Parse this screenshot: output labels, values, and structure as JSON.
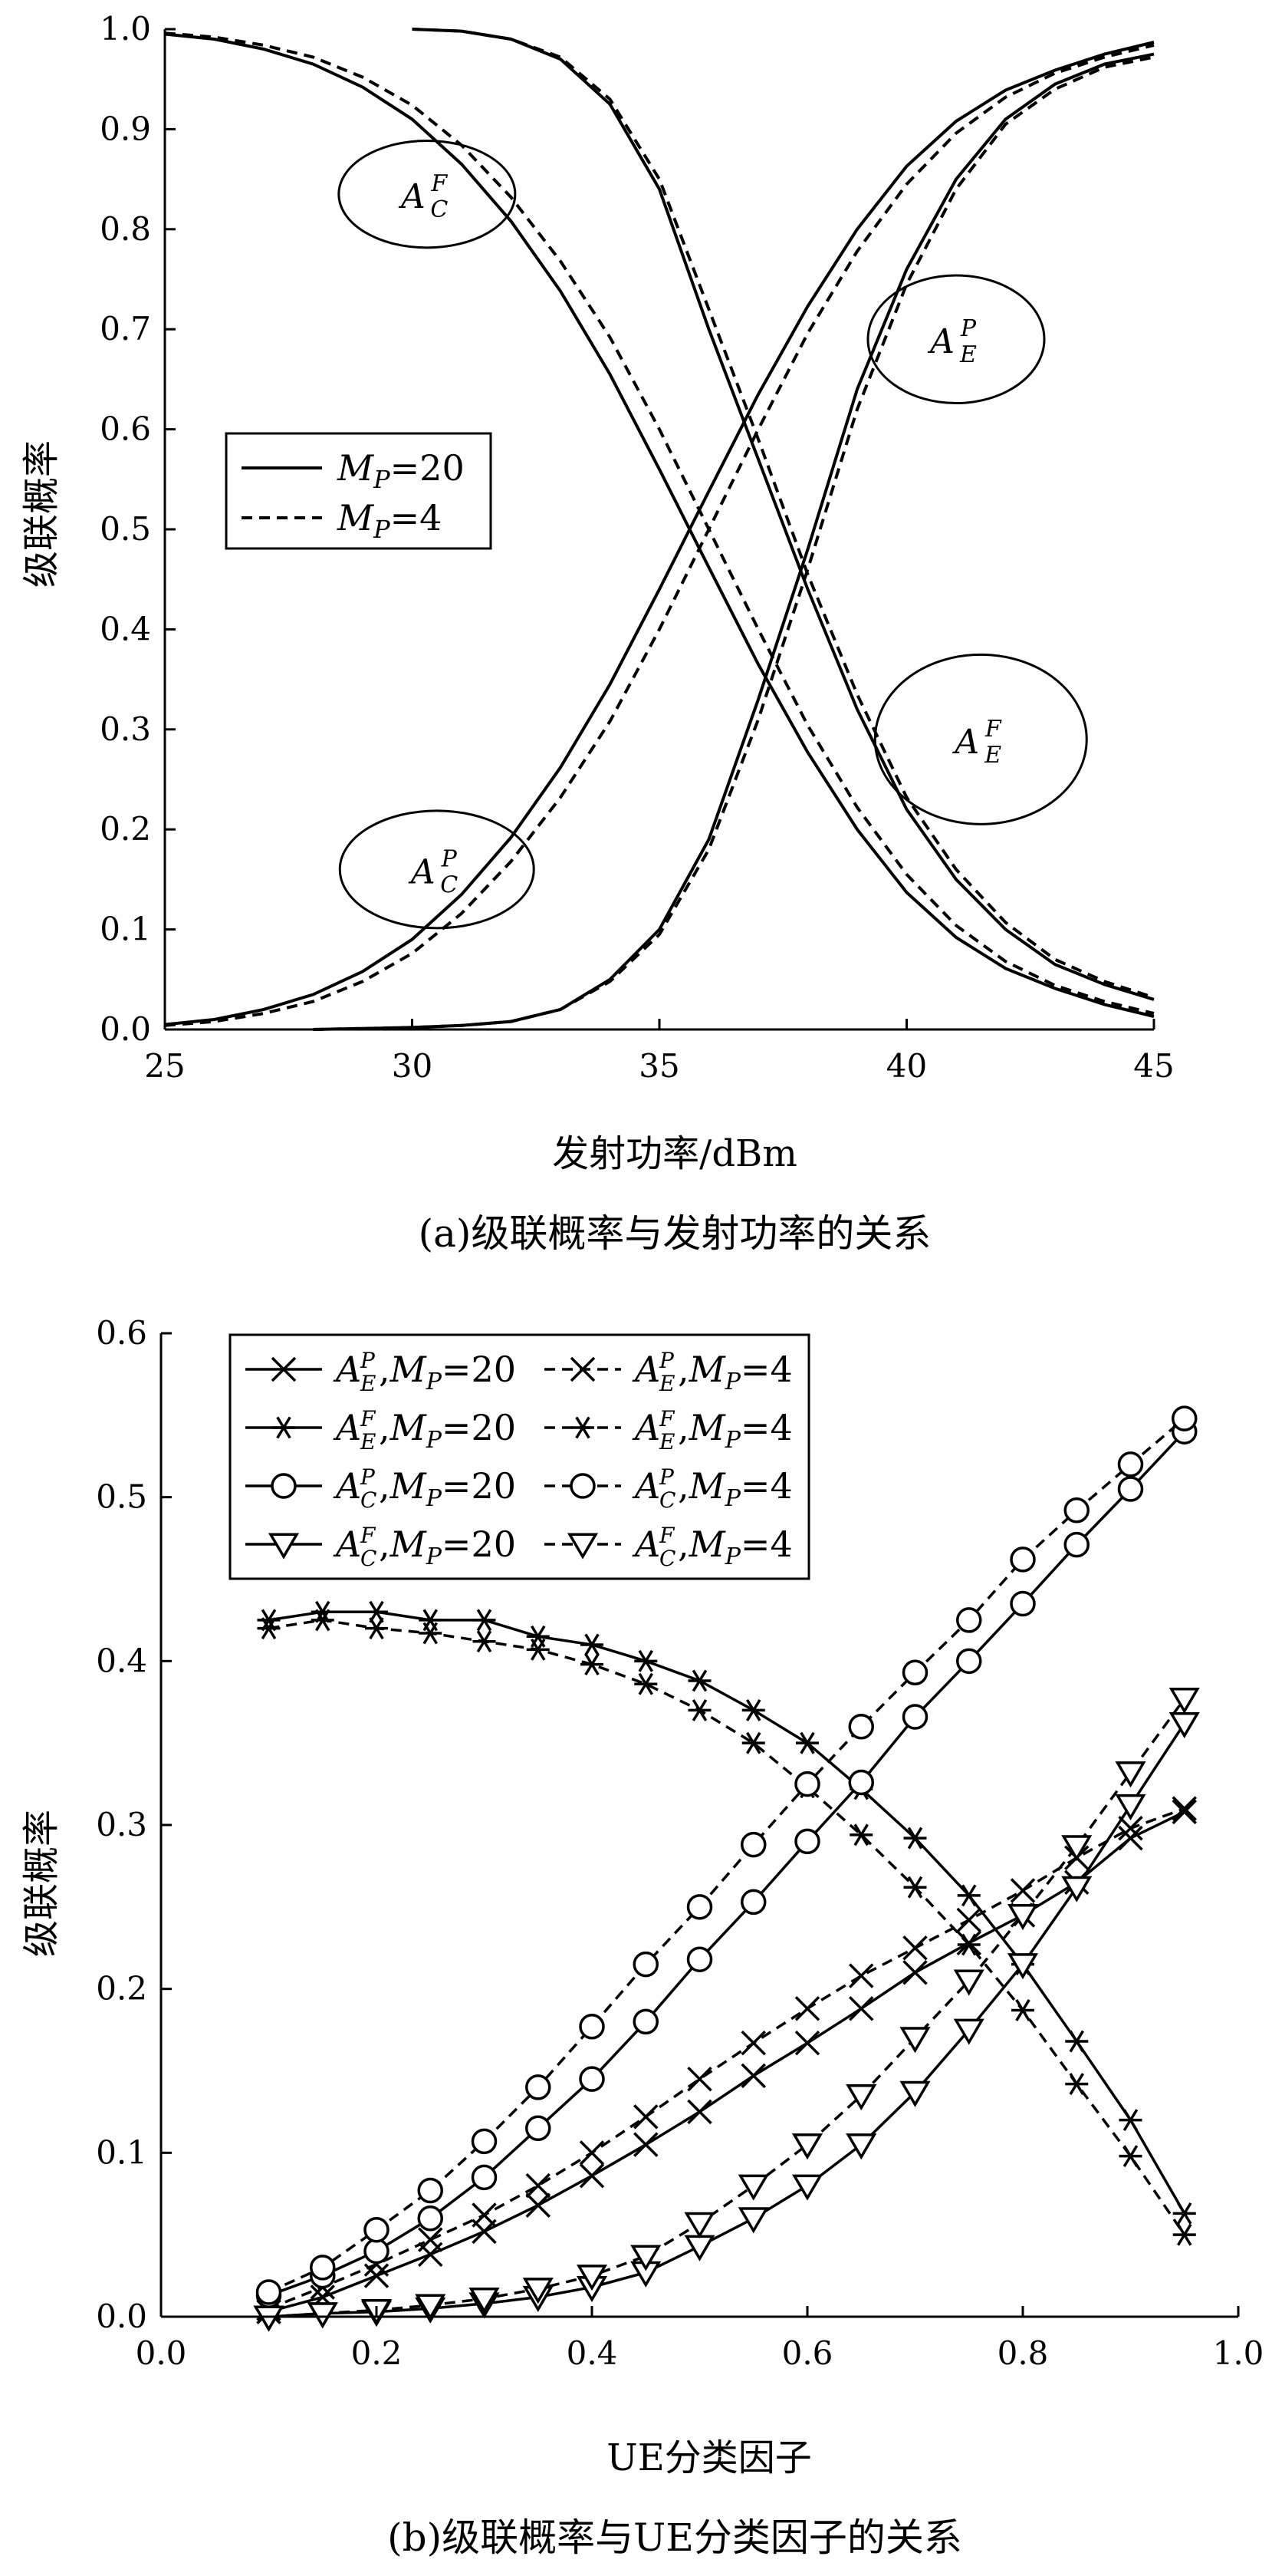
{
  "chart_data": [
    {
      "type": "line",
      "caption": "(a)级联概率与发射功率的关系",
      "xlabel": "发射功率/dBm",
      "ylabel": "级联概率",
      "xlim": [
        25,
        45
      ],
      "ylim": [
        0,
        1.0
      ],
      "xticks": [
        "25",
        "30",
        "35",
        "40",
        "45"
      ],
      "yticks": [
        "0.0",
        "0.1",
        "0.2",
        "0.3",
        "0.4",
        "0.5",
        "0.6",
        "0.7",
        "0.8",
        "0.9",
        "1.0"
      ],
      "grid": false,
      "legend": {
        "position": "middle-left",
        "entries": [
          {
            "label": "M",
            "sub": "P",
            "suffix": "=20",
            "style": "solid"
          },
          {
            "label": "M",
            "sub": "P",
            "suffix": "=4",
            "style": "dashed"
          }
        ]
      },
      "annotations": [
        {
          "base": "A",
          "sub": "C",
          "sup": "F",
          "at": [
            30.3,
            0.835
          ]
        },
        {
          "base": "A",
          "sub": "E",
          "sup": "P",
          "at": [
            41.0,
            0.69
          ]
        },
        {
          "base": "A",
          "sub": "E",
          "sup": "F",
          "at": [
            41.5,
            0.29
          ]
        },
        {
          "base": "A",
          "sub": "C",
          "sup": "P",
          "at": [
            30.5,
            0.16
          ]
        }
      ],
      "series": [
        {
          "name": "A_C^F, M_P=20",
          "style": "solid",
          "x": [
            25,
            26,
            27,
            28,
            29,
            30,
            31,
            32,
            33,
            34,
            35,
            36,
            37,
            38,
            39,
            40,
            41,
            42,
            43,
            44,
            45
          ],
          "y": [
            0.995,
            0.99,
            0.98,
            0.965,
            0.942,
            0.91,
            0.865,
            0.808,
            0.738,
            0.655,
            0.56,
            0.462,
            0.365,
            0.277,
            0.2,
            0.137,
            0.092,
            0.061,
            0.041,
            0.025,
            0.013
          ]
        },
        {
          "name": "A_C^F, M_P=4",
          "style": "dashed",
          "x": [
            25,
            26,
            27,
            28,
            29,
            30,
            31,
            32,
            33,
            34,
            35,
            36,
            37,
            38,
            39,
            40,
            41,
            42,
            43,
            44,
            45
          ],
          "y": [
            0.996,
            0.992,
            0.984,
            0.972,
            0.952,
            0.924,
            0.884,
            0.832,
            0.768,
            0.692,
            0.6,
            0.5,
            0.4,
            0.304,
            0.222,
            0.155,
            0.104,
            0.068,
            0.044,
            0.028,
            0.016
          ]
        },
        {
          "name": "A_C^P, M_P=20",
          "style": "solid",
          "x": [
            25,
            26,
            27,
            28,
            29,
            30,
            31,
            32,
            33,
            34,
            35,
            36,
            37,
            38,
            39,
            40,
            41,
            42,
            43,
            44,
            45
          ],
          "y": [
            0.005,
            0.01,
            0.02,
            0.035,
            0.058,
            0.09,
            0.135,
            0.192,
            0.262,
            0.345,
            0.44,
            0.538,
            0.635,
            0.723,
            0.8,
            0.863,
            0.908,
            0.939,
            0.959,
            0.975,
            0.987
          ]
        },
        {
          "name": "A_C^P, M_P=4",
          "style": "dashed",
          "x": [
            25,
            26,
            27,
            28,
            29,
            30,
            31,
            32,
            33,
            34,
            35,
            36,
            37,
            38,
            39,
            40,
            41,
            42,
            43,
            44,
            45
          ],
          "y": [
            0.004,
            0.008,
            0.016,
            0.028,
            0.048,
            0.076,
            0.116,
            0.168,
            0.232,
            0.308,
            0.4,
            0.5,
            0.6,
            0.696,
            0.778,
            0.845,
            0.896,
            0.932,
            0.956,
            0.972,
            0.984
          ]
        },
        {
          "name": "A_E^F, M_P=20",
          "style": "solid",
          "x": [
            30,
            31,
            32,
            33,
            34,
            35,
            36,
            37,
            38,
            39,
            40,
            41,
            42,
            43,
            44,
            45
          ],
          "y": [
            1.0,
            0.998,
            0.99,
            0.97,
            0.925,
            0.84,
            0.7,
            0.57,
            0.44,
            0.32,
            0.22,
            0.15,
            0.1,
            0.065,
            0.045,
            0.03
          ]
        },
        {
          "name": "A_E^F, M_P=4",
          "style": "dashed",
          "x": [
            30,
            31,
            32,
            33,
            34,
            35,
            36,
            37,
            38,
            39,
            40,
            41,
            42,
            43,
            44,
            45
          ],
          "y": [
            1.0,
            0.998,
            0.99,
            0.972,
            0.93,
            0.85,
            0.72,
            0.59,
            0.455,
            0.335,
            0.232,
            0.16,
            0.107,
            0.07,
            0.048,
            0.032
          ]
        },
        {
          "name": "A_E^P, M_P=20",
          "style": "solid",
          "x": [
            28,
            29,
            30,
            31,
            32,
            33,
            34,
            35,
            36,
            37,
            38,
            39,
            40,
            41,
            42,
            43,
            44,
            45
          ],
          "y": [
            0.0,
            0.001,
            0.002,
            0.004,
            0.008,
            0.02,
            0.05,
            0.1,
            0.19,
            0.33,
            0.48,
            0.64,
            0.76,
            0.85,
            0.91,
            0.945,
            0.965,
            0.975
          ]
        },
        {
          "name": "A_E^P, M_P=4",
          "style": "dashed",
          "x": [
            28,
            29,
            30,
            31,
            32,
            33,
            34,
            35,
            36,
            37,
            38,
            39,
            40,
            41,
            42,
            43,
            44,
            45
          ],
          "y": [
            0.0,
            0.001,
            0.002,
            0.004,
            0.008,
            0.02,
            0.048,
            0.095,
            0.18,
            0.31,
            0.46,
            0.62,
            0.745,
            0.84,
            0.905,
            0.94,
            0.962,
            0.972
          ]
        }
      ]
    },
    {
      "type": "line",
      "caption": "(b)级联概率与UE分类因子的关系",
      "xlabel": "UE分类因子",
      "ylabel": "级联概率",
      "xlim": [
        0,
        1.0
      ],
      "ylim": [
        0,
        0.6
      ],
      "xticks": [
        "0.0",
        "0.2",
        "0.4",
        "0.6",
        "0.8",
        "1.0"
      ],
      "yticks": [
        "0.0",
        "0.1",
        "0.2",
        "0.3",
        "0.4",
        "0.5",
        "0.6"
      ],
      "grid": false,
      "legend": {
        "position": "top-left",
        "entries": [
          {
            "base": "A",
            "sub": "E",
            "sup": "P",
            "mp": "M",
            "mpsub": "P",
            "suffix": "=20",
            "marker": "x",
            "style": "solid"
          },
          {
            "base": "A",
            "sub": "E",
            "sup": "P",
            "mp": "M",
            "mpsub": "P",
            "suffix": "=4",
            "marker": "x",
            "style": "dashed"
          },
          {
            "base": "A",
            "sub": "E",
            "sup": "F",
            "mp": "M",
            "mpsub": "P",
            "suffix": "=20",
            "marker": "asterisk",
            "style": "solid"
          },
          {
            "base": "A",
            "sub": "E",
            "sup": "F",
            "mp": "M",
            "mpsub": "P",
            "suffix": "=4",
            "marker": "asterisk",
            "style": "dashed"
          },
          {
            "base": "A",
            "sub": "C",
            "sup": "P",
            "mp": "M",
            "mpsub": "P",
            "suffix": "=20",
            "marker": "circle",
            "style": "solid"
          },
          {
            "base": "A",
            "sub": "C",
            "sup": "P",
            "mp": "M",
            "mpsub": "P",
            "suffix": "=4",
            "marker": "circle",
            "style": "dashed"
          },
          {
            "base": "A",
            "sub": "C",
            "sup": "F",
            "mp": "M",
            "mpsub": "P",
            "suffix": "=20",
            "marker": "triangle-down",
            "style": "solid"
          },
          {
            "base": "A",
            "sub": "C",
            "sup": "F",
            "mp": "M",
            "mpsub": "P",
            "suffix": "=4",
            "marker": "triangle-down",
            "style": "dashed"
          }
        ]
      },
      "series": [
        {
          "name": "A_E^P, M_P=20",
          "marker": "x",
          "style": "solid",
          "x": [
            0.1,
            0.15,
            0.2,
            0.25,
            0.3,
            0.35,
            0.4,
            0.45,
            0.5,
            0.55,
            0.6,
            0.65,
            0.7,
            0.75,
            0.8,
            0.85,
            0.9,
            0.95
          ],
          "y": [
            0.003,
            0.012,
            0.025,
            0.038,
            0.052,
            0.068,
            0.086,
            0.105,
            0.125,
            0.147,
            0.167,
            0.188,
            0.21,
            0.228,
            0.245,
            0.265,
            0.292,
            0.308
          ]
        },
        {
          "name": "A_E^P, M_P=4",
          "marker": "x",
          "style": "dashed",
          "x": [
            0.1,
            0.15,
            0.2,
            0.25,
            0.3,
            0.35,
            0.4,
            0.45,
            0.5,
            0.55,
            0.6,
            0.65,
            0.7,
            0.75,
            0.8,
            0.85,
            0.9,
            0.95
          ],
          "y": [
            0.005,
            0.018,
            0.032,
            0.047,
            0.062,
            0.08,
            0.1,
            0.122,
            0.145,
            0.167,
            0.188,
            0.208,
            0.225,
            0.242,
            0.26,
            0.28,
            0.298,
            0.31
          ]
        },
        {
          "name": "A_E^F, M_P=20",
          "marker": "asterisk",
          "style": "solid",
          "x": [
            0.1,
            0.15,
            0.2,
            0.25,
            0.3,
            0.35,
            0.4,
            0.45,
            0.5,
            0.55,
            0.6,
            0.65,
            0.7,
            0.75,
            0.8,
            0.85,
            0.9,
            0.95
          ],
          "y": [
            0.425,
            0.43,
            0.43,
            0.425,
            0.425,
            0.415,
            0.41,
            0.4,
            0.388,
            0.37,
            0.35,
            0.322,
            0.292,
            0.257,
            0.215,
            0.168,
            0.12,
            0.063
          ]
        },
        {
          "name": "A_E^F, M_P=4",
          "marker": "asterisk",
          "style": "dashed",
          "x": [
            0.1,
            0.15,
            0.2,
            0.25,
            0.3,
            0.35,
            0.4,
            0.45,
            0.5,
            0.55,
            0.6,
            0.65,
            0.7,
            0.75,
            0.8,
            0.85,
            0.9,
            0.95
          ],
          "y": [
            0.42,
            0.425,
            0.42,
            0.417,
            0.412,
            0.407,
            0.398,
            0.386,
            0.37,
            0.35,
            0.323,
            0.294,
            0.262,
            0.227,
            0.187,
            0.142,
            0.098,
            0.05
          ]
        },
        {
          "name": "A_C^P, M_P=20",
          "marker": "circle",
          "style": "solid",
          "x": [
            0.1,
            0.15,
            0.2,
            0.25,
            0.3,
            0.35,
            0.4,
            0.45,
            0.5,
            0.55,
            0.6,
            0.65,
            0.7,
            0.75,
            0.8,
            0.85,
            0.9,
            0.95
          ],
          "y": [
            0.013,
            0.025,
            0.04,
            0.06,
            0.085,
            0.115,
            0.145,
            0.18,
            0.218,
            0.253,
            0.29,
            0.326,
            0.366,
            0.4,
            0.435,
            0.471,
            0.505,
            0.54
          ]
        },
        {
          "name": "A_C^P, M_P=4",
          "marker": "circle",
          "style": "dashed",
          "x": [
            0.1,
            0.15,
            0.2,
            0.25,
            0.3,
            0.35,
            0.4,
            0.45,
            0.5,
            0.55,
            0.6,
            0.65,
            0.7,
            0.75,
            0.8,
            0.85,
            0.9,
            0.95
          ],
          "y": [
            0.015,
            0.03,
            0.053,
            0.077,
            0.107,
            0.14,
            0.177,
            0.215,
            0.25,
            0.288,
            0.325,
            0.36,
            0.393,
            0.425,
            0.462,
            0.492,
            0.52,
            0.548
          ]
        },
        {
          "name": "A_C^F, M_P=20",
          "marker": "triangle-down",
          "style": "solid",
          "x": [
            0.1,
            0.15,
            0.2,
            0.25,
            0.3,
            0.35,
            0.4,
            0.45,
            0.5,
            0.55,
            0.6,
            0.65,
            0.7,
            0.75,
            0.8,
            0.85,
            0.9,
            0.95
          ],
          "y": [
            0.0,
            0.002,
            0.003,
            0.005,
            0.008,
            0.012,
            0.018,
            0.027,
            0.043,
            0.06,
            0.08,
            0.105,
            0.137,
            0.175,
            0.215,
            0.262,
            0.312,
            0.362
          ]
        },
        {
          "name": "A_C^F, M_P=4",
          "marker": "triangle-down",
          "style": "dashed",
          "x": [
            0.1,
            0.15,
            0.2,
            0.25,
            0.3,
            0.35,
            0.4,
            0.45,
            0.5,
            0.55,
            0.6,
            0.65,
            0.7,
            0.75,
            0.8,
            0.85,
            0.9,
            0.95
          ],
          "y": [
            0.0,
            0.002,
            0.004,
            0.007,
            0.011,
            0.017,
            0.025,
            0.037,
            0.057,
            0.08,
            0.105,
            0.135,
            0.17,
            0.205,
            0.245,
            0.287,
            0.332,
            0.377
          ]
        }
      ]
    }
  ]
}
